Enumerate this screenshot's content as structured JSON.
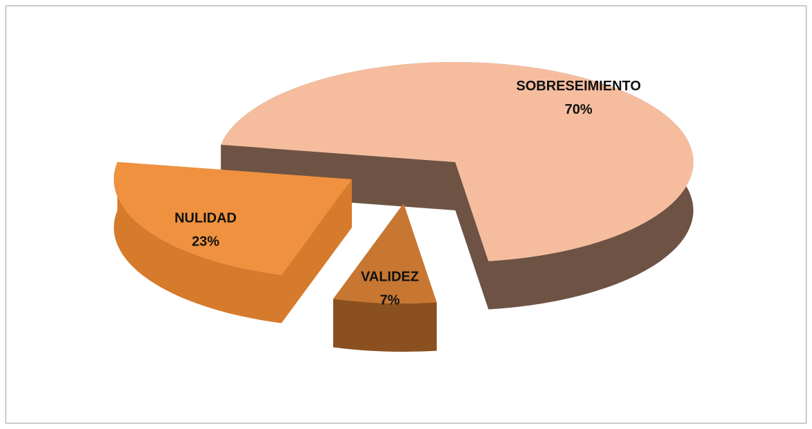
{
  "chart_data": {
    "type": "pie",
    "categories": [
      "SOBRESEIMIENTO",
      "VALIDEZ",
      "NULIDAD"
    ],
    "values": [
      70,
      7,
      23
    ],
    "value_labels": [
      "70%",
      "7%",
      "23%"
    ],
    "colors": [
      "#f5bd9e",
      "#c77732",
      "#ef913f"
    ],
    "side_colors": [
      "#6e5344",
      "#8a501f",
      "#d67a2c"
    ]
  }
}
